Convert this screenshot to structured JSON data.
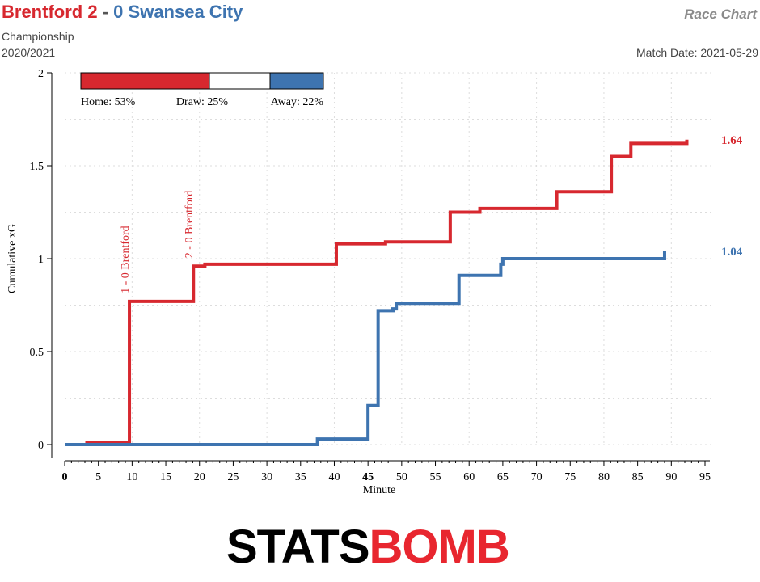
{
  "header": {
    "home_team": "Brentford",
    "home_score": "2",
    "separator": " - ",
    "away_score": "0",
    "away_team": "Swansea City",
    "competition": "Championship",
    "season": "2020/2021",
    "chart_name": "Race Chart",
    "match_date": "Match Date: 2021-05-29"
  },
  "colors": {
    "home": "#d7282f",
    "away": "#3e74b0",
    "draw": "#ffffff"
  },
  "probabilities": {
    "home_label": "Home: 53%",
    "draw_label": "Draw: 25%",
    "away_label": "Away: 22%",
    "home": 0.53,
    "draw": 0.25,
    "away": 0.22
  },
  "logo": {
    "part1": "STATS",
    "part2": "BOMB"
  },
  "chart_data": {
    "type": "line",
    "xlabel": "Minute",
    "ylabel": "Cumulative xG",
    "xlim": [
      0,
      95
    ],
    "ylim": [
      0,
      2
    ],
    "x_ticks": [
      0,
      5,
      10,
      15,
      20,
      25,
      30,
      35,
      40,
      45,
      50,
      55,
      60,
      65,
      70,
      75,
      80,
      85,
      90,
      95
    ],
    "x_tick_labels": [
      "0",
      "5",
      "10",
      "15",
      "20",
      "25",
      "30",
      "35",
      "40",
      "45",
      "50",
      "55",
      "60",
      "65",
      "70",
      "75",
      "80",
      "85",
      "90",
      "95"
    ],
    "y_ticks": [
      0,
      0.5,
      1,
      1.5,
      2
    ],
    "y_tick_labels": [
      "0",
      "0.5",
      "1",
      "1.5",
      "2"
    ],
    "grid": true,
    "series": [
      {
        "name": "Brentford",
        "color": "#d7282f",
        "end_label": "1.64",
        "x": [
          0,
          3.3,
          9.6,
          19.1,
          20.8,
          40.3,
          47.6,
          57.2,
          61.6,
          73,
          81.1,
          84,
          92.3
        ],
        "y": [
          0,
          0.01,
          0.77,
          0.96,
          0.97,
          1.08,
          1.09,
          1.25,
          1.27,
          1.36,
          1.55,
          1.62,
          1.64
        ]
      },
      {
        "name": "Swansea City",
        "color": "#3e74b0",
        "end_label": "1.04",
        "x": [
          0,
          37.5,
          45,
          46.5,
          48.7,
          49.2,
          58.5,
          64.7,
          65,
          89
        ],
        "y": [
          0,
          0.03,
          0.21,
          0.72,
          0.73,
          0.76,
          0.91,
          0.97,
          1,
          1.04
        ]
      }
    ],
    "annotations": [
      {
        "text": "1 - 0 Brentford",
        "x": 9.6,
        "y": 0.77
      },
      {
        "text": "2 - 0 Brentford",
        "x": 19.1,
        "y": 0.96
      }
    ],
    "highlight_tick": "45"
  }
}
